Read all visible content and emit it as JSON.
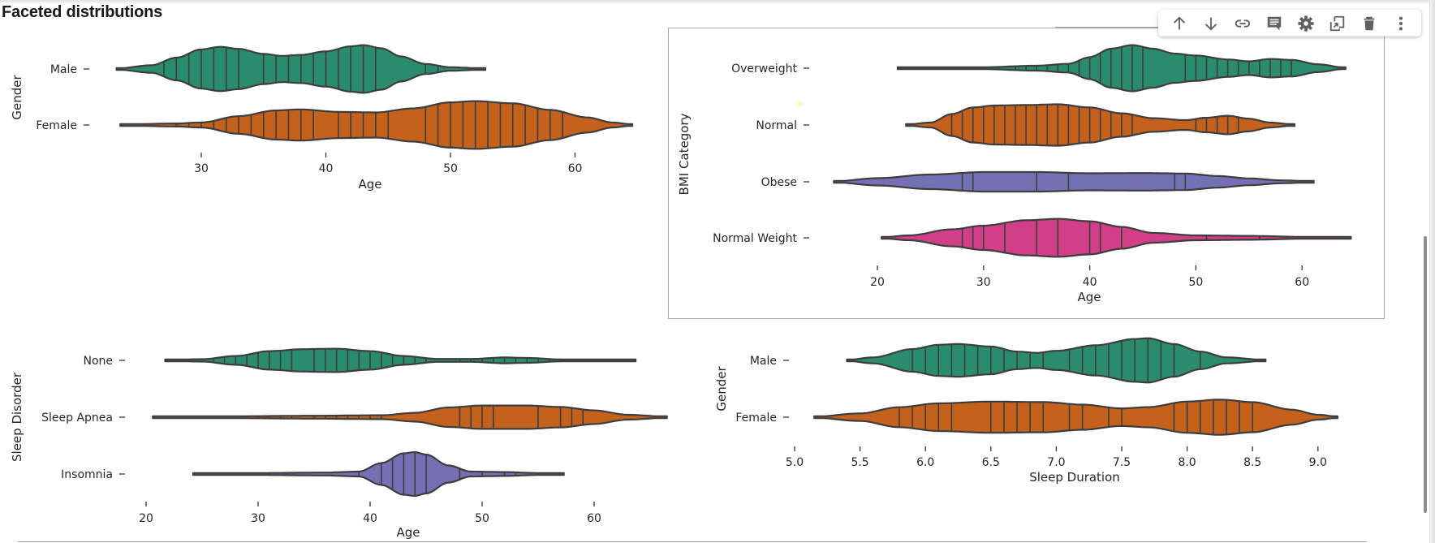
{
  "page": {
    "title": "Faceted distributions"
  },
  "toolbar": {
    "buttons": [
      {
        "name": "move-up",
        "icon": "arrow-up-icon",
        "label": "Move up"
      },
      {
        "name": "move-down",
        "icon": "arrow-down-icon",
        "label": "Move down"
      },
      {
        "name": "link",
        "icon": "link-icon",
        "label": "Link"
      },
      {
        "name": "comment",
        "icon": "comment-icon",
        "label": "Comment"
      },
      {
        "name": "settings",
        "icon": "gear-icon",
        "label": "Settings"
      },
      {
        "name": "mirror",
        "icon": "mirror-cell-icon",
        "label": "Mirror"
      },
      {
        "name": "delete",
        "icon": "trash-icon",
        "label": "Delete"
      },
      {
        "name": "more",
        "icon": "more-vert-icon",
        "label": "More"
      }
    ]
  },
  "colors": {
    "series": [
      "#2a8c6d",
      "#c4621d",
      "#7570b3",
      "#d13f89"
    ],
    "outline": "#3d3d3d",
    "text": "#262626"
  },
  "chart_data": [
    {
      "type": "violin",
      "id": "age-by-gender",
      "title": "",
      "xlabel": "Age",
      "ylabel": "Gender",
      "xlim": [
        22,
        66
      ],
      "xticks": [
        30,
        40,
        50,
        60
      ],
      "xtick_labels": [
        "30",
        "40",
        "50",
        "60"
      ],
      "categories": [
        "Male",
        "Female"
      ],
      "boxed": false,
      "series": [
        {
          "name": "Male",
          "range": [
            23.2,
            52.8
          ],
          "density": [
            [
              23.2,
              0.02
            ],
            [
              26,
              0.15
            ],
            [
              28,
              0.45
            ],
            [
              30,
              0.78
            ],
            [
              31.5,
              0.88
            ],
            [
              33,
              0.8
            ],
            [
              35,
              0.6
            ],
            [
              36.5,
              0.52
            ],
            [
              38,
              0.56
            ],
            [
              40,
              0.7
            ],
            [
              42,
              0.9
            ],
            [
              43,
              0.95
            ],
            [
              44.5,
              0.82
            ],
            [
              46,
              0.5
            ],
            [
              48,
              0.2
            ],
            [
              50,
              0.07
            ],
            [
              52.8,
              0.02
            ]
          ],
          "sticks": [
            27,
            28,
            29,
            30,
            31,
            32,
            33,
            35,
            36,
            37,
            38,
            39,
            40,
            41,
            42,
            43,
            44,
            48,
            49
          ]
        },
        {
          "name": "Female",
          "range": [
            23.5,
            64.6
          ],
          "density": [
            [
              23.5,
              0.02
            ],
            [
              28,
              0.06
            ],
            [
              30,
              0.1
            ],
            [
              33,
              0.35
            ],
            [
              36,
              0.58
            ],
            [
              38,
              0.62
            ],
            [
              41,
              0.52
            ],
            [
              44,
              0.5
            ],
            [
              47,
              0.66
            ],
            [
              50,
              0.9
            ],
            [
              52,
              0.95
            ],
            [
              55,
              0.86
            ],
            [
              58,
              0.6
            ],
            [
              61,
              0.3
            ],
            [
              63,
              0.1
            ],
            [
              64.6,
              0.02
            ]
          ],
          "sticks": [
            28,
            29,
            30,
            31,
            32,
            33,
            34,
            35,
            36,
            37,
            38,
            39,
            41,
            42,
            43,
            44,
            45,
            48,
            49,
            50,
            51,
            52,
            53,
            54,
            55,
            56,
            57,
            58,
            59
          ]
        }
      ]
    },
    {
      "type": "violin",
      "id": "age-by-bmi",
      "title": "",
      "xlabel": "Age",
      "ylabel": "BMI Category",
      "xlim": [
        15,
        66
      ],
      "xticks": [
        20,
        30,
        40,
        50,
        60
      ],
      "xtick_labels": [
        "20",
        "30",
        "40",
        "50",
        "60"
      ],
      "categories": [
        "Overweight",
        "Normal",
        "Obese",
        "Normal Weight"
      ],
      "boxed": true,
      "series": [
        {
          "name": "Overweight",
          "range": [
            21.9,
            64.1
          ],
          "density": [
            [
              21.9,
              0.02
            ],
            [
              30,
              0.04
            ],
            [
              35,
              0.1
            ],
            [
              38,
              0.18
            ],
            [
              40,
              0.45
            ],
            [
              42,
              0.8
            ],
            [
              44,
              0.95
            ],
            [
              46,
              0.8
            ],
            [
              48,
              0.6
            ],
            [
              50,
              0.52
            ],
            [
              53,
              0.36
            ],
            [
              55,
              0.28
            ],
            [
              57,
              0.38
            ],
            [
              59,
              0.34
            ],
            [
              61.5,
              0.16
            ],
            [
              64.1,
              0.02
            ]
          ],
          "sticks": [
            33,
            34,
            35,
            36,
            37,
            38,
            39,
            40,
            41,
            42,
            43,
            44,
            45,
            49,
            50,
            51,
            52,
            53,
            54,
            55,
            56,
            57,
            58,
            59
          ]
        },
        {
          "name": "Normal",
          "range": [
            22.7,
            59.3
          ],
          "density": [
            [
              22.7,
              0.02
            ],
            [
              25,
              0.1
            ],
            [
              27,
              0.45
            ],
            [
              29,
              0.72
            ],
            [
              31,
              0.8
            ],
            [
              34,
              0.82
            ],
            [
              37,
              0.85
            ],
            [
              40,
              0.72
            ],
            [
              43,
              0.48
            ],
            [
              46,
              0.28
            ],
            [
              49,
              0.2
            ],
            [
              51,
              0.3
            ],
            [
              53,
              0.38
            ],
            [
              55,
              0.26
            ],
            [
              57,
              0.1
            ],
            [
              59.3,
              0.02
            ]
          ],
          "sticks": [
            27,
            28,
            29,
            30,
            31,
            32,
            33,
            34,
            35,
            36,
            37,
            38,
            39,
            40,
            41,
            42,
            43,
            44,
            50,
            51,
            52,
            53,
            54
          ]
        },
        {
          "name": "Obese",
          "range": [
            15.9,
            61.1
          ],
          "density": [
            [
              15.9,
              0.02
            ],
            [
              20,
              0.15
            ],
            [
              25,
              0.3
            ],
            [
              30,
              0.4
            ],
            [
              35,
              0.4
            ],
            [
              40,
              0.35
            ],
            [
              45,
              0.36
            ],
            [
              49,
              0.34
            ],
            [
              52,
              0.24
            ],
            [
              55,
              0.14
            ],
            [
              58,
              0.06
            ],
            [
              61.1,
              0.02
            ]
          ],
          "sticks": [
            28,
            29,
            35,
            38,
            48,
            49
          ]
        },
        {
          "name": "Normal Weight",
          "range": [
            20.4,
            64.6
          ],
          "density": [
            [
              20.4,
              0.02
            ],
            [
              23,
              0.1
            ],
            [
              27,
              0.35
            ],
            [
              30,
              0.5
            ],
            [
              34,
              0.72
            ],
            [
              37,
              0.78
            ],
            [
              40,
              0.68
            ],
            [
              43,
              0.45
            ],
            [
              46,
              0.2
            ],
            [
              50,
              0.1
            ],
            [
              55,
              0.08
            ],
            [
              60,
              0.04
            ],
            [
              64.6,
              0.02
            ]
          ],
          "sticks": [
            28,
            29,
            30,
            32,
            35,
            37,
            40,
            41,
            43,
            51,
            56
          ]
        }
      ]
    },
    {
      "type": "violin",
      "id": "age-by-sleep-disorder",
      "title": "",
      "xlabel": "Age",
      "ylabel": "Sleep Disorder",
      "xlim": [
        18,
        67
      ],
      "xticks": [
        20,
        30,
        40,
        50,
        60
      ],
      "xtick_labels": [
        "20",
        "30",
        "40",
        "50",
        "60"
      ],
      "categories": [
        "None",
        "Sleep Apnea",
        "Insomnia"
      ],
      "boxed": false,
      "series": [
        {
          "name": "None",
          "range": [
            21.7,
            63.7
          ],
          "density": [
            [
              21.7,
              0.02
            ],
            [
              25,
              0.05
            ],
            [
              28,
              0.18
            ],
            [
              31,
              0.38
            ],
            [
              34,
              0.46
            ],
            [
              37,
              0.48
            ],
            [
              40,
              0.38
            ],
            [
              43,
              0.18
            ],
            [
              46,
              0.06
            ],
            [
              49,
              0.06
            ],
            [
              52,
              0.12
            ],
            [
              54,
              0.1
            ],
            [
              57,
              0.04
            ],
            [
              60,
              0.02
            ],
            [
              63.7,
              0.02
            ]
          ],
          "sticks": [
            26,
            27,
            28,
            29,
            30,
            31,
            32,
            33,
            35,
            36,
            37,
            38,
            39,
            40,
            41,
            42,
            43,
            44,
            45,
            48,
            49,
            50,
            51,
            52,
            53,
            54,
            55,
            56,
            57
          ]
        },
        {
          "name": "Sleep Apnea",
          "range": [
            20.6,
            66.5
          ],
          "density": [
            [
              20.6,
              0.02
            ],
            [
              28,
              0.04
            ],
            [
              35,
              0.06
            ],
            [
              41,
              0.08
            ],
            [
              44,
              0.18
            ],
            [
              47,
              0.4
            ],
            [
              50,
              0.48
            ],
            [
              54,
              0.48
            ],
            [
              57,
              0.42
            ],
            [
              60,
              0.28
            ],
            [
              63,
              0.1
            ],
            [
              66.5,
              0.02
            ]
          ],
          "sticks": [
            29,
            30,
            31,
            32,
            33,
            35,
            36,
            37,
            38,
            39,
            40,
            41,
            48,
            49,
            50,
            51,
            55,
            57,
            58,
            59
          ]
        },
        {
          "name": "Insomnia",
          "range": [
            24.2,
            57.3
          ],
          "density": [
            [
              24.2,
              0.02
            ],
            [
              30,
              0.04
            ],
            [
              36,
              0.06
            ],
            [
              39,
              0.1
            ],
            [
              41,
              0.45
            ],
            [
              43,
              0.85
            ],
            [
              44,
              0.9
            ],
            [
              45,
              0.8
            ],
            [
              47,
              0.35
            ],
            [
              49,
              0.1
            ],
            [
              52,
              0.08
            ],
            [
              55,
              0.04
            ],
            [
              57.3,
              0.02
            ]
          ],
          "sticks": [
            29,
            31,
            39,
            41,
            42,
            43,
            44,
            45,
            48,
            50,
            52,
            53
          ]
        }
      ]
    },
    {
      "type": "violin",
      "id": "sleep-duration-by-gender",
      "title": "",
      "xlabel": "Sleep Duration",
      "ylabel": "Gender",
      "xlim": [
        4.95,
        9.25
      ],
      "xticks": [
        5.0,
        5.5,
        6.0,
        6.5,
        7.0,
        7.5,
        8.0,
        8.5,
        9.0
      ],
      "xtick_labels": [
        "5.0",
        "5.5",
        "6.0",
        "6.5",
        "7.0",
        "7.5",
        "8.0",
        "8.5",
        "9.0"
      ],
      "categories": [
        "Male",
        "Female"
      ],
      "boxed": false,
      "series": [
        {
          "name": "Male",
          "range": [
            5.4,
            8.6
          ],
          "density": [
            [
              5.4,
              0.02
            ],
            [
              5.6,
              0.12
            ],
            [
              5.9,
              0.45
            ],
            [
              6.1,
              0.62
            ],
            [
              6.25,
              0.65
            ],
            [
              6.5,
              0.55
            ],
            [
              6.7,
              0.35
            ],
            [
              6.85,
              0.3
            ],
            [
              7.0,
              0.38
            ],
            [
              7.3,
              0.6
            ],
            [
              7.6,
              0.85
            ],
            [
              7.7,
              0.88
            ],
            [
              7.9,
              0.65
            ],
            [
              8.1,
              0.35
            ],
            [
              8.3,
              0.12
            ],
            [
              8.6,
              0.02
            ]
          ],
          "sticks": [
            5.9,
            6.0,
            6.1,
            6.2,
            6.3,
            6.4,
            6.5,
            6.6,
            6.7,
            6.8,
            6.9,
            7.1,
            7.2,
            7.3,
            7.4,
            7.5,
            7.6,
            7.7,
            7.8,
            7.9,
            8.1
          ]
        },
        {
          "name": "Female",
          "range": [
            5.15,
            9.15
          ],
          "density": [
            [
              5.15,
              0.02
            ],
            [
              5.5,
              0.15
            ],
            [
              5.8,
              0.4
            ],
            [
              6.1,
              0.55
            ],
            [
              6.5,
              0.62
            ],
            [
              6.9,
              0.6
            ],
            [
              7.2,
              0.5
            ],
            [
              7.5,
              0.35
            ],
            [
              7.7,
              0.4
            ],
            [
              8.0,
              0.62
            ],
            [
              8.25,
              0.7
            ],
            [
              8.5,
              0.6
            ],
            [
              8.8,
              0.3
            ],
            [
              9.0,
              0.1
            ],
            [
              9.15,
              0.02
            ]
          ],
          "sticks": [
            5.8,
            5.9,
            6.0,
            6.1,
            6.2,
            6.5,
            6.6,
            6.7,
            6.8,
            6.9,
            7.1,
            7.2,
            7.4,
            7.5,
            7.9,
            8.0,
            8.1,
            8.2,
            8.3,
            8.4,
            8.5
          ]
        }
      ]
    }
  ]
}
